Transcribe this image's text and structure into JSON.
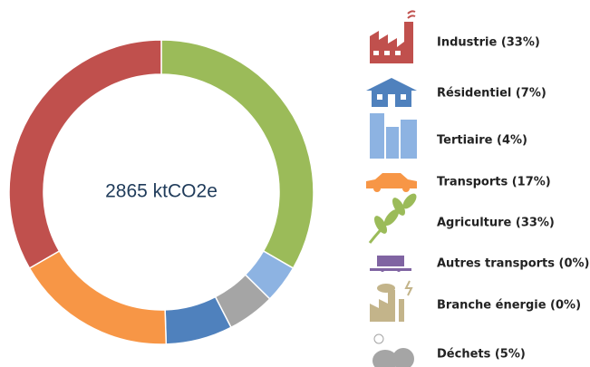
{
  "chart_data": {
    "type": "pie",
    "center_label": "2865 ktCO2e",
    "categories": [
      "Industrie (33%)",
      "Résidentiel (7%)",
      "Tertiaire (4%)",
      "Transports (17%)",
      "Agriculture (33%)",
      "Autres transports (0%)",
      "Branche énergie (0%)",
      "Déchets (5%)"
    ],
    "values": [
      33,
      7,
      4,
      17,
      33,
      0,
      0,
      5
    ],
    "colors": [
      "#c0504d",
      "#4f81bd",
      "#8db3e2",
      "#f79646",
      "#9bbb59",
      "#8064a2",
      "#c3b48a",
      "#a5a5a5"
    ]
  }
}
